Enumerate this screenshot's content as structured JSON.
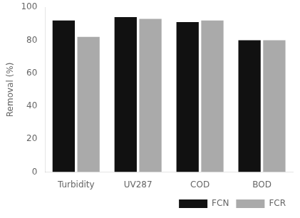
{
  "chart_data": {
    "type": "bar",
    "categories": [
      "Turbidity",
      "UV287",
      "COD",
      "BOD"
    ],
    "series": [
      {
        "name": "FCN",
        "color": "#111111",
        "values": [
          92,
          94,
          91,
          80
        ]
      },
      {
        "name": "FCR",
        "color": "#aaaaaa",
        "values": [
          82,
          93,
          92,
          80
        ]
      }
    ],
    "ylabel": "Removal (%)",
    "ylim": [
      0,
      100
    ],
    "yticks": [
      0,
      20,
      40,
      60,
      80,
      100
    ],
    "grid": false,
    "legend": "lower right"
  }
}
